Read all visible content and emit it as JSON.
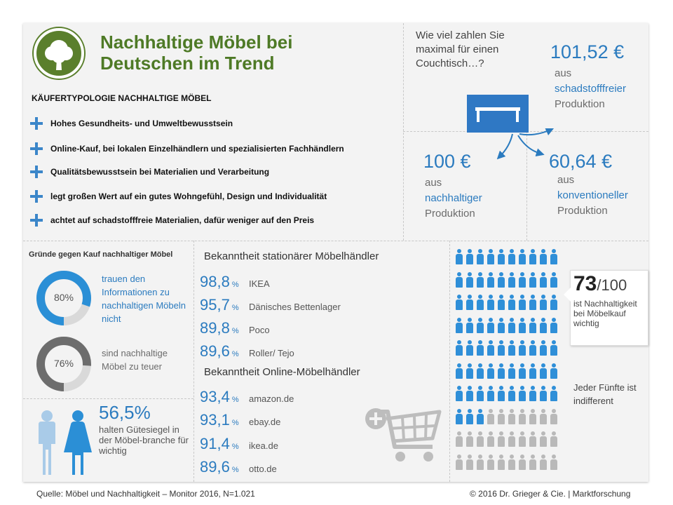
{
  "header": {
    "title": "Nachhaltige Möbel bei Deutschen im Trend"
  },
  "typology": {
    "heading": "KÄUFERTYPOLOGIE NACHHALTIGE MÖBEL",
    "items": [
      "Hohes Gesundheits- und Umweltbewusstsein",
      "Online-Kauf, bei lokalen Einzelhändlern und spezialisierten Fachhändlern",
      "Qualitätsbewusstsein bei  Materialien und Verarbeitung",
      "legt großen Wert auf ein gutes Wohngefühl, Design und Individualität",
      "achtet auf schadstofffreie Materialien, dafür  weniger auf den Preis"
    ]
  },
  "price": {
    "question": "Wie viel zahlen Sie maximal für einen Couchtisch…?",
    "items": [
      {
        "value": "101,52 €",
        "pre": "aus",
        "type": "schadstofffreier",
        "post": "Produktion"
      },
      {
        "value": "100 €",
        "pre": "aus",
        "type": "nachhaltiger",
        "post": "Produktion"
      },
      {
        "value": "60,64 €",
        "pre": "aus",
        "type": "konventioneller",
        "post": "Produktion"
      }
    ]
  },
  "reasons": {
    "heading": "Gründe gegen Kauf nachhaltiger Möbel",
    "items": [
      {
        "label": "80%",
        "percent": 80,
        "text": "trauen den Informationen zu nachhaltigen Möbeln nicht",
        "color": "#2b8fd6"
      },
      {
        "label": "76%",
        "percent": 76,
        "text": "sind nachhaltige Möbel zu teuer",
        "color": "#6d6d6d"
      }
    ]
  },
  "stationary": {
    "heading": "Bekanntheit stationärer Möbelhändler",
    "items": [
      {
        "value": "98,8",
        "unit": "%",
        "name": "IKEA"
      },
      {
        "value": "95,7",
        "unit": "%",
        "name": "Dänisches Bettenlager"
      },
      {
        "value": "89,8",
        "unit": "%",
        "name": "Poco"
      },
      {
        "value": "89,6",
        "unit": "%",
        "name": "Roller/ Tejo"
      }
    ]
  },
  "online": {
    "heading": "Bekanntheit Online-Möbelhändler",
    "items": [
      {
        "value": "93,4",
        "unit": "%",
        "name": "amazon.de"
      },
      {
        "value": "93,1",
        "unit": "%",
        "name": "ebay.de"
      },
      {
        "value": "91,4",
        "unit": "%",
        "name": "ikea.de"
      },
      {
        "value": "89,6",
        "unit": "%",
        "name": "otto.de"
      }
    ]
  },
  "gender": {
    "percent": "56,5%",
    "text": "halten Gütesiegel in der Möbel-branche für wichtig"
  },
  "people": {
    "count_big": "73",
    "count_small": "/100",
    "text": "ist Nachhaltigkeit bei Möbelkauf wichtig",
    "indifferent": "Jeder Fünfte ist indifferent",
    "total": 100,
    "highlighted": 73,
    "color_on": "#2f8fd8",
    "color_off": "#b9b9b9"
  },
  "chart_data": [
    {
      "type": "pie",
      "title": "Gründe gegen Kauf nachhaltiger Möbel",
      "categories": [
        "trauen den Informationen zu nachhaltigen Möbeln nicht",
        "sind nachhaltige Möbel zu teuer"
      ],
      "values": [
        80,
        76
      ]
    },
    {
      "type": "bar",
      "title": "Bekanntheit stationärer Möbelhändler",
      "categories": [
        "IKEA",
        "Dänisches Bettenlager",
        "Poco",
        "Roller/ Tejo"
      ],
      "values": [
        98.8,
        95.7,
        89.8,
        89.6
      ]
    },
    {
      "type": "bar",
      "title": "Bekanntheit Online-Möbelhändler",
      "categories": [
        "amazon.de",
        "ebay.de",
        "ikea.de",
        "otto.de"
      ],
      "values": [
        93.4,
        93.1,
        91.4,
        89.6
      ]
    },
    {
      "type": "bar",
      "title": "Wie viel zahlen Sie maximal für einen Couchtisch…?",
      "categories": [
        "schadstofffreier",
        "nachhaltiger",
        "konventioneller"
      ],
      "values": [
        101.52,
        100,
        60.64
      ]
    }
  ],
  "footer": {
    "source": "Quelle: Möbel und Nachhaltigkeit – Monitor 2016, N=1.021",
    "copyright": "© 2016 Dr. Grieger & Cie. | Marktforschung"
  }
}
